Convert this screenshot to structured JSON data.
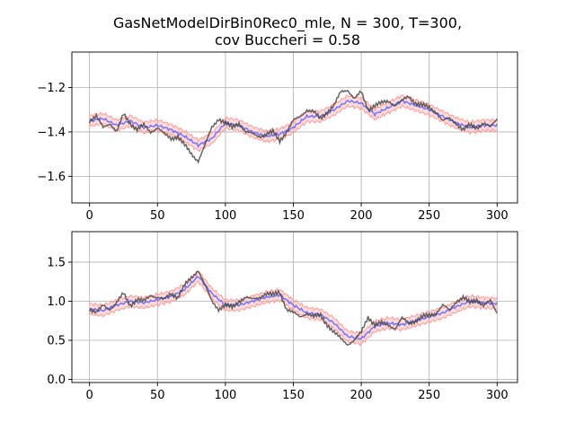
{
  "title_line1": "GasNetModelDirBin0Rec0_mle, N = 300, T=300,",
  "title_line2": "cov Buccheri = 0.58",
  "colors": {
    "true_series": "#404040",
    "estimate": "#5555ff",
    "band": "#ff9a9a",
    "grid": "#b0b0b0"
  },
  "chart_data": [
    {
      "type": "line",
      "xlim": [
        -13,
        315
      ],
      "ylim": [
        -1.72,
        -1.04
      ],
      "xticks": [
        0,
        50,
        100,
        150,
        200,
        250,
        300
      ],
      "yticks": [
        -1.6,
        -1.4,
        -1.2
      ],
      "ytick_labels": [
        "−1.6",
        "−1.4",
        "−1.2"
      ],
      "grid": true,
      "anchors": {
        "true_x": [
          0,
          5,
          10,
          15,
          20,
          25,
          30,
          35,
          40,
          45,
          50,
          55,
          60,
          65,
          70,
          75,
          80,
          85,
          90,
          95,
          100,
          105,
          110,
          115,
          120,
          125,
          130,
          135,
          140,
          145,
          150,
          155,
          160,
          165,
          170,
          175,
          180,
          185,
          190,
          195,
          200,
          205,
          210,
          215,
          220,
          225,
          230,
          235,
          240,
          245,
          250,
          255,
          260,
          265,
          270,
          275,
          280,
          285,
          290,
          295,
          300
        ],
        "true_y": [
          -1.35,
          -1.33,
          -1.38,
          -1.36,
          -1.4,
          -1.32,
          -1.36,
          -1.39,
          -1.37,
          -1.4,
          -1.38,
          -1.41,
          -1.43,
          -1.42,
          -1.46,
          -1.5,
          -1.53,
          -1.46,
          -1.38,
          -1.34,
          -1.36,
          -1.38,
          -1.36,
          -1.4,
          -1.41,
          -1.42,
          -1.41,
          -1.4,
          -1.44,
          -1.4,
          -1.35,
          -1.33,
          -1.3,
          -1.31,
          -1.34,
          -1.31,
          -1.28,
          -1.22,
          -1.21,
          -1.25,
          -1.22,
          -1.3,
          -1.28,
          -1.27,
          -1.26,
          -1.28,
          -1.26,
          -1.24,
          -1.27,
          -1.28,
          -1.29,
          -1.31,
          -1.35,
          -1.34,
          -1.36,
          -1.39,
          -1.37,
          -1.38,
          -1.36,
          -1.38,
          -1.34
        ],
        "est_x": [
          0,
          10,
          20,
          30,
          40,
          50,
          60,
          70,
          80,
          90,
          100,
          110,
          120,
          130,
          140,
          150,
          160,
          170,
          180,
          190,
          200,
          210,
          220,
          230,
          240,
          250,
          260,
          270,
          280,
          290,
          300
        ],
        "est_y": [
          -1.35,
          -1.34,
          -1.37,
          -1.35,
          -1.38,
          -1.37,
          -1.39,
          -1.42,
          -1.46,
          -1.43,
          -1.36,
          -1.37,
          -1.4,
          -1.42,
          -1.41,
          -1.38,
          -1.33,
          -1.33,
          -1.3,
          -1.26,
          -1.27,
          -1.32,
          -1.29,
          -1.26,
          -1.28,
          -1.3,
          -1.33,
          -1.36,
          -1.38,
          -1.37,
          -1.37
        ]
      }
    },
    {
      "type": "line",
      "xlim": [
        -13,
        315
      ],
      "ylim": [
        -0.04,
        1.89
      ],
      "xticks": [
        0,
        50,
        100,
        150,
        200,
        250,
        300
      ],
      "yticks": [
        0.0,
        0.5,
        1.0,
        1.5
      ],
      "ytick_labels": [
        "0.0",
        "0.5",
        "1.0",
        "1.5"
      ],
      "grid": true,
      "anchors": {
        "true_x": [
          0,
          5,
          10,
          15,
          20,
          25,
          30,
          35,
          40,
          45,
          50,
          55,
          60,
          65,
          70,
          75,
          80,
          85,
          90,
          95,
          100,
          105,
          110,
          115,
          120,
          125,
          130,
          135,
          140,
          145,
          150,
          155,
          160,
          165,
          170,
          175,
          180,
          185,
          190,
          195,
          200,
          205,
          210,
          215,
          220,
          225,
          230,
          235,
          240,
          245,
          250,
          255,
          260,
          265,
          270,
          275,
          280,
          285,
          290,
          295,
          300
        ],
        "true_y": [
          0.9,
          0.85,
          0.95,
          0.9,
          0.98,
          1.1,
          0.95,
          1.02,
          1.0,
          1.08,
          1.05,
          1.02,
          1.1,
          1.05,
          1.2,
          1.3,
          1.4,
          1.2,
          1.0,
          0.9,
          0.95,
          0.92,
          1.0,
          1.05,
          1.02,
          1.05,
          1.1,
          1.08,
          1.12,
          0.9,
          0.85,
          0.8,
          0.85,
          0.8,
          0.82,
          0.7,
          0.6,
          0.52,
          0.45,
          0.5,
          0.6,
          0.8,
          0.7,
          0.72,
          0.7,
          0.65,
          0.78,
          0.72,
          0.75,
          0.8,
          0.82,
          0.85,
          0.95,
          0.88,
          1.0,
          1.05,
          0.98,
          1.02,
          0.95,
          1.0,
          0.85
        ],
        "est_x": [
          0,
          10,
          20,
          30,
          40,
          50,
          60,
          70,
          80,
          90,
          100,
          110,
          120,
          130,
          140,
          150,
          160,
          170,
          180,
          190,
          200,
          210,
          220,
          230,
          240,
          250,
          260,
          270,
          280,
          290,
          300
        ],
        "est_y": [
          0.9,
          0.88,
          0.95,
          1.0,
          0.98,
          1.02,
          1.06,
          1.15,
          1.32,
          1.1,
          0.95,
          0.95,
          1.0,
          1.05,
          1.08,
          0.95,
          0.85,
          0.83,
          0.72,
          0.55,
          0.52,
          0.68,
          0.72,
          0.7,
          0.75,
          0.8,
          0.85,
          0.93,
          1.0,
          0.98,
          0.97
        ]
      }
    }
  ]
}
